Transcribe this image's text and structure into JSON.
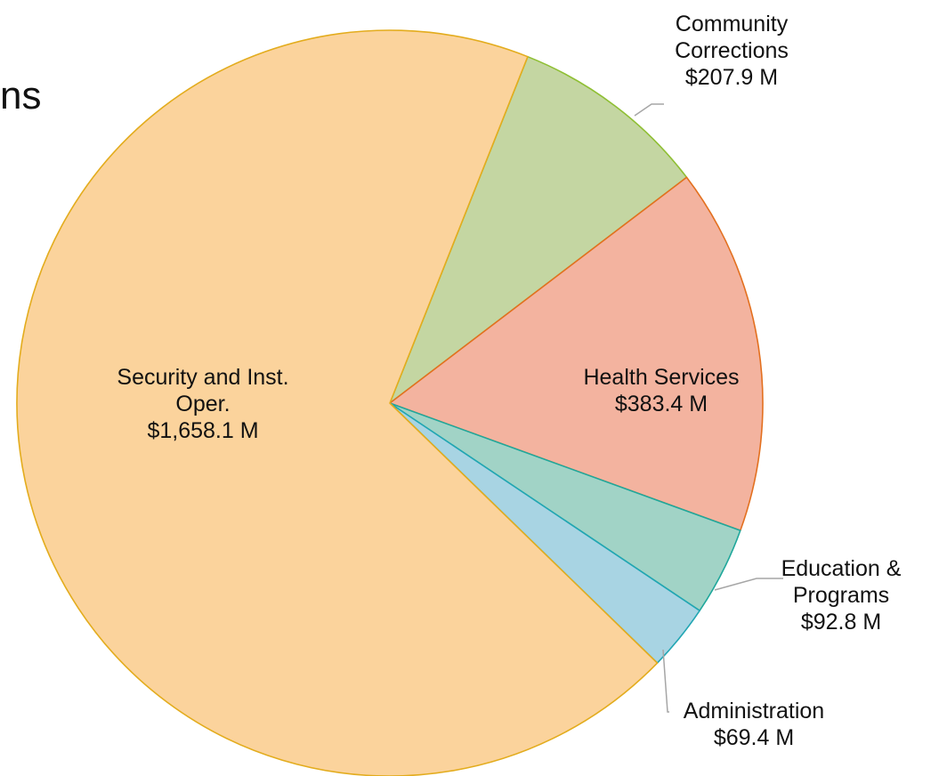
{
  "title_fragment": "ns",
  "chart_data": {
    "type": "pie",
    "slices": [
      {
        "label_lines": [
          "Community",
          "Corrections",
          "$207.9 M"
        ],
        "value": 207.9,
        "fill": "#c4d6a2",
        "stroke": "#8fbf34"
      },
      {
        "label_lines": [
          "Health Services",
          "$383.4 M"
        ],
        "value": 383.4,
        "fill": "#f3b39f",
        "stroke": "#e3701f"
      },
      {
        "label_lines": [
          "Education &",
          "Programs",
          "$92.8 M"
        ],
        "value": 92.8,
        "fill": "#a1d3c6",
        "stroke": "#1fa79b"
      },
      {
        "label_lines": [
          "Administration",
          "$69.4 M"
        ],
        "value": 69.4,
        "fill": "#a8d4e3",
        "stroke": "#21a6b3"
      },
      {
        "label_lines": [
          "Security and Inst.",
          "Oper.",
          "$1,658.1 M"
        ],
        "value": 1658.1,
        "fill": "#fbd39c",
        "stroke": "#e3ac1d"
      }
    ]
  }
}
